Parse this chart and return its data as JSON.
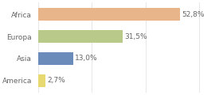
{
  "categories": [
    "Africa",
    "Europa",
    "Asia",
    "America"
  ],
  "values": [
    52.8,
    31.5,
    13.0,
    2.7
  ],
  "labels": [
    "52,8%",
    "31,5%",
    "13,0%",
    "2,7%"
  ],
  "colors": [
    "#e8b48a",
    "#b8c98a",
    "#6b8cba",
    "#e8d870"
  ],
  "background_color": "#ffffff",
  "xlim": [
    0,
    68
  ],
  "bar_height": 0.55,
  "label_fontsize": 6.5,
  "tick_fontsize": 6.5,
  "label_color": "#666666",
  "tick_color": "#666666"
}
